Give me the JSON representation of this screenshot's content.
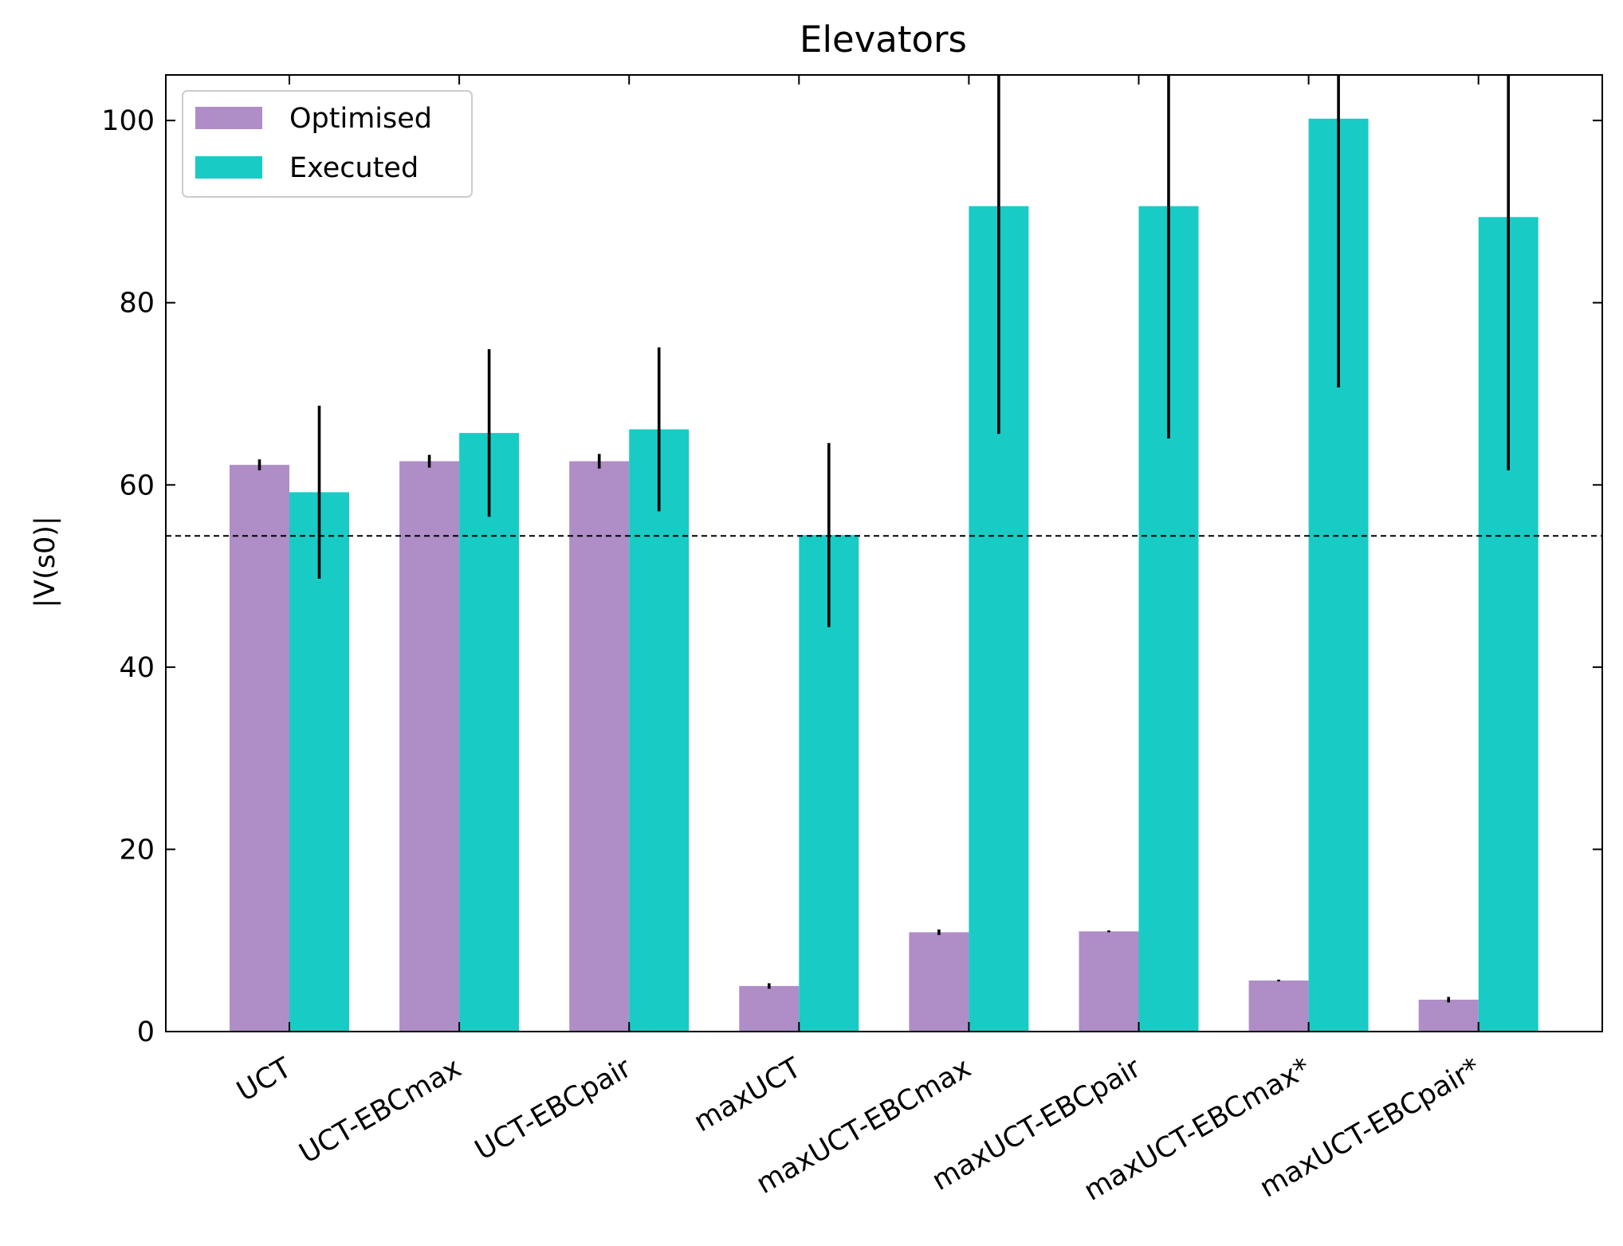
{
  "chart_data": {
    "type": "bar",
    "title": "Elevators",
    "xlabel": "",
    "ylabel": "|V(s0)|",
    "ylim": [
      0,
      105
    ],
    "yticks": [
      0,
      20,
      40,
      60,
      80,
      100
    ],
    "categories": [
      "UCT",
      "UCT-EBCmax",
      "UCT-EBCpair",
      "maxUCT",
      "maxUCT-EBCmax",
      "maxUCT-EBCpair",
      "maxUCT-EBCmax*",
      "maxUCT-EBCpair*"
    ],
    "series": [
      {
        "name": "Optimised",
        "color": "#af8dc6",
        "values": [
          62.2,
          62.6,
          62.6,
          5.0,
          10.9,
          11.0,
          5.6,
          3.5
        ],
        "errors": [
          0.6,
          0.7,
          0.8,
          0.3,
          0.3,
          0.1,
          0.1,
          0.3
        ]
      },
      {
        "name": "Executed",
        "color": "#19cbc5",
        "values": [
          59.2,
          65.7,
          66.1,
          54.5,
          90.6,
          90.6,
          100.2,
          89.4
        ],
        "errors": [
          9.5,
          9.2,
          9.0,
          10.1,
          25.0,
          25.5,
          29.5,
          27.8
        ]
      }
    ],
    "reference_line": {
      "y": 54.4,
      "style": "dashed",
      "color": "#000000"
    },
    "legend": {
      "placement": "top-left"
    },
    "grid": false,
    "xtick_rotation": 30
  }
}
